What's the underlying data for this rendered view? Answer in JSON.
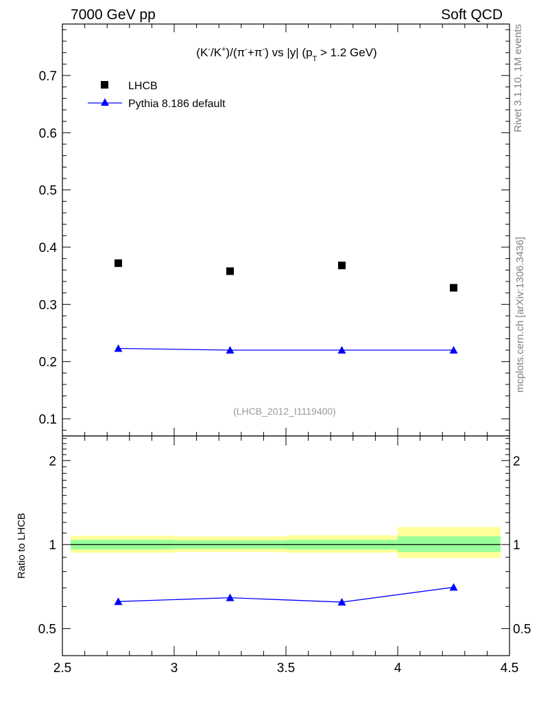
{
  "header": {
    "left": "7000 GeV pp",
    "right": "Soft QCD"
  },
  "side_labels": {
    "rivet": "Rivet 3.1.10,  1M events",
    "source": "mcplots.cern.ch [arXiv:1306.3436]"
  },
  "chart_data": [
    {
      "type": "scatter",
      "title": "(K⁻/K⁺)/(π⁻+π⁻) vs |y| (p_T > 1.2 GeV)",
      "watermark": "(LHCB_2012_I1119400)",
      "xlim": [
        2.5,
        4.5
      ],
      "ylim": [
        0.07,
        0.79
      ],
      "yticks": [
        "0.1",
        "0.2",
        "0.3",
        "0.4",
        "0.5",
        "0.6",
        "0.7"
      ],
      "xticks": [
        "2.5",
        "3",
        "3.5",
        "4",
        "4.5"
      ],
      "legend_position": "top-left",
      "series": [
        {
          "name": "LHCB",
          "marker": "square",
          "color": "#000000",
          "x": [
            2.75,
            3.25,
            3.75,
            4.25
          ],
          "y": [
            0.372,
            0.358,
            0.368,
            0.329
          ]
        },
        {
          "name": "Pythia 8.186 default",
          "marker": "triangle",
          "color": "#0000ff",
          "line": true,
          "x": [
            2.75,
            3.25,
            3.75,
            4.25
          ],
          "y": [
            0.223,
            0.22,
            0.22,
            0.22
          ]
        }
      ]
    },
    {
      "type": "line",
      "ylabel": "Ratio to LHCB",
      "xlim": [
        2.5,
        4.5
      ],
      "ylim": [
        0.4,
        2.45
      ],
      "ylog": true,
      "yticks": [
        "0.5",
        "1",
        "2"
      ],
      "xticks": [
        "2.5",
        "3",
        "3.5",
        "4",
        "4.5"
      ],
      "bands": {
        "bin_edges": [
          2.5,
          3.0,
          3.5,
          4.0,
          4.5
        ],
        "inner_color": "#99ff99",
        "outer_color": "#ffff99",
        "inner": [
          [
            0.96,
            1.04
          ],
          [
            0.965,
            1.035
          ],
          [
            0.96,
            1.04
          ],
          [
            0.94,
            1.07
          ]
        ],
        "outer": [
          [
            0.935,
            1.075
          ],
          [
            0.94,
            1.07
          ],
          [
            0.935,
            1.08
          ],
          [
            0.895,
            1.155
          ]
        ]
      },
      "series": [
        {
          "name": "Pythia 8.186 default",
          "color": "#0000ff",
          "marker": "triangle",
          "x": [
            2.75,
            3.25,
            3.75,
            4.25
          ],
          "y": [
            0.625,
            0.645,
            0.622,
            0.703
          ]
        }
      ]
    }
  ]
}
